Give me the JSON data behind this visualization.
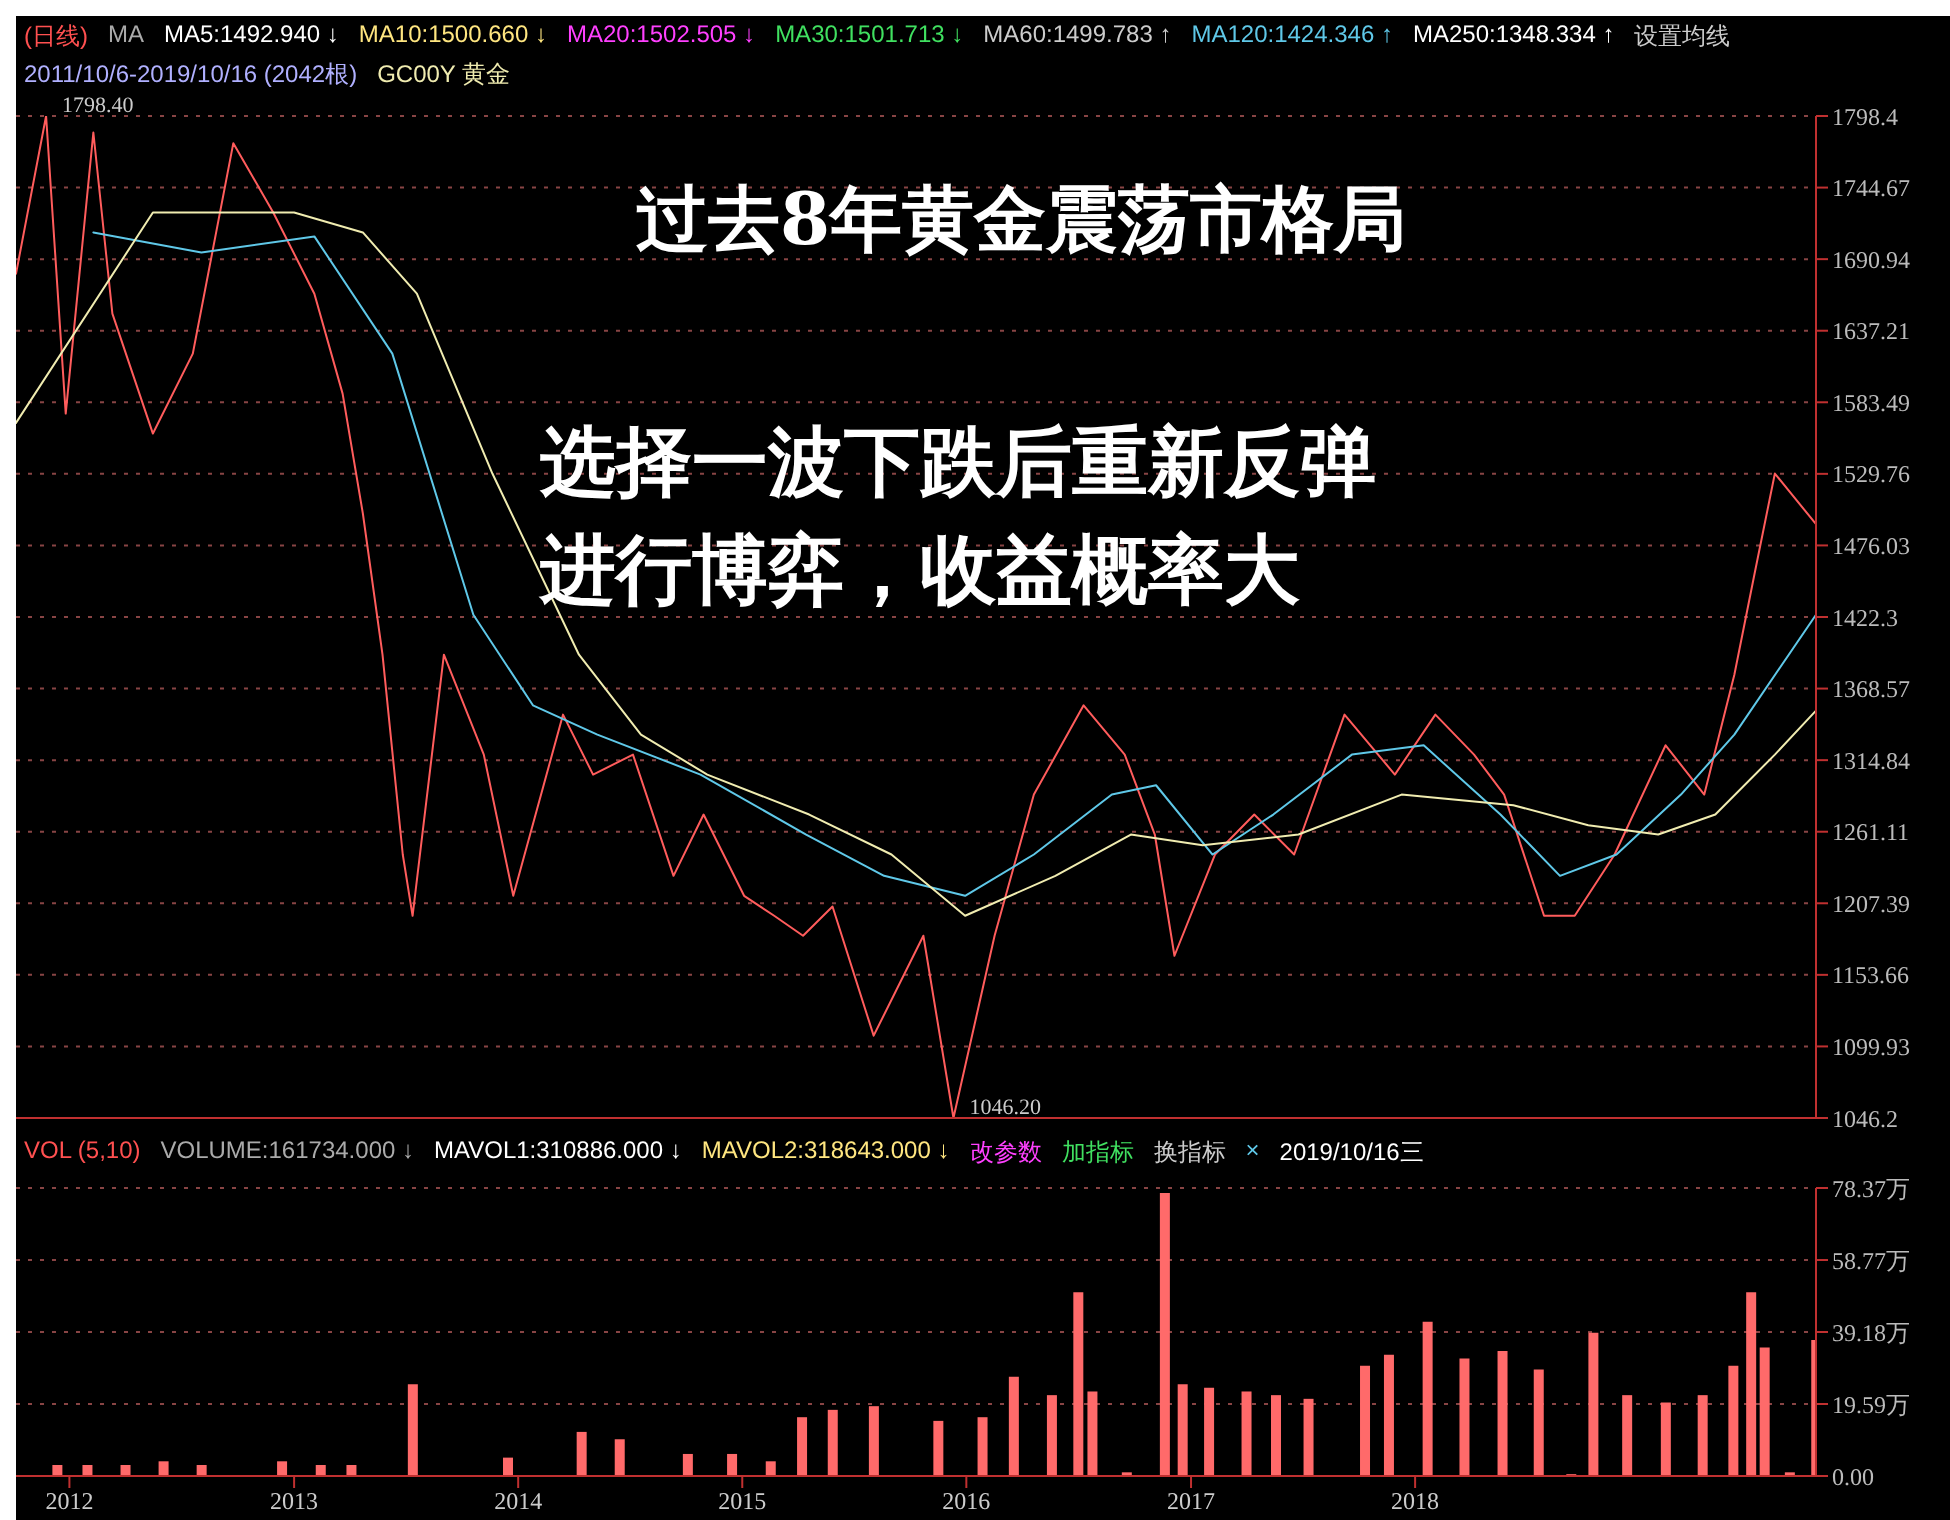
{
  "chart_data": [
    {
      "type": "line",
      "title": "过去8年黄金震荡市格局",
      "subtitle": "选择一波下跌后重新反弹进行博弈，收益概率大",
      "x": [
        "2011-10-06",
        "2011-11-24",
        "2011-12-26",
        "2012-02-09",
        "2012-03-11",
        "2012-05-16",
        "2012-07-20",
        "2012-09-24",
        "2012-11-28",
        "2013-02-03",
        "2013-03-21",
        "2013-04-23",
        "2013-05-25",
        "2013-06-27",
        "2013-07-13",
        "2013-09-02",
        "2013-11-06",
        "2013-12-24",
        "2014-03-15",
        "2014-05-03",
        "2014-07-07",
        "2014-09-11",
        "2014-10-30",
        "2015-01-04",
        "2015-02-22",
        "2015-04-10",
        "2015-05-28",
        "2015-08-03",
        "2015-10-23",
        "2015-12-11",
        "2016-02-16",
        "2016-04-20",
        "2016-07-10",
        "2016-09-15",
        "2016-11-03",
        "2016-12-05",
        "2017-02-09",
        "2017-04-14",
        "2017-06-18",
        "2017-09-08",
        "2017-11-29",
        "2018-02-03",
        "2018-04-07",
        "2018-05-26",
        "2018-07-30",
        "2018-09-18",
        "2018-11-22",
        "2019-02-13",
        "2019-04-17",
        "2019-06-05",
        "2019-07-08",
        "2019-08-10",
        "2019-10-16"
      ],
      "series": [
        {
          "color": "#ff5c5c",
          "values": [
            1680,
            1798.4,
            1575,
            1786,
            1650,
            1560,
            1620,
            1778,
            1726,
            1665,
            1590,
            1500,
            1394,
            1244,
            1198,
            1394,
            1319,
            1213,
            1349,
            1304,
            1319,
            1228,
            1274,
            1213,
            1198,
            1183,
            1205,
            1108,
            1183,
            1046.2,
            1183,
            1289,
            1356,
            1319,
            1259,
            1168,
            1244,
            1274,
            1244,
            1349,
            1304,
            1349,
            1319,
            1289,
            1198,
            1198,
            1244,
            1326,
            1289,
            1379,
            1455,
            1530,
            1492
          ]
        },
        {
          "color": "#5fc8e8",
          "x": [
            "2012-02-09",
            "2012-08-03",
            "2013-02-03",
            "2013-06-10",
            "2013-10-20",
            "2014-01-25",
            "2014-05-10",
            "2014-10-25",
            "2015-04-15",
            "2015-08-20",
            "2015-12-30",
            "2016-04-20",
            "2016-08-25",
            "2016-11-05",
            "2017-02-05",
            "2017-05-15",
            "2017-09-20",
            "2018-01-15",
            "2018-05-20",
            "2018-08-25",
            "2018-11-25",
            "2019-03-10",
            "2019-06-05",
            "2019-10-16"
          ],
          "values": [
            1711,
            1696,
            1708,
            1620,
            1424,
            1356,
            1334,
            1304,
            1259,
            1228,
            1213,
            1244,
            1289,
            1296,
            1244,
            1274,
            1319,
            1326,
            1274,
            1228,
            1244,
            1289,
            1334,
            1424
          ]
        },
        {
          "color": "#f0ecb0",
          "x": [
            "2011-10-06",
            "2012-05-16",
            "2013-01-01",
            "2013-04-23",
            "2013-07-20",
            "2013-11-20",
            "2014-04-10",
            "2014-07-20",
            "2014-11-05",
            "2015-04-20",
            "2015-09-01",
            "2015-12-30",
            "2016-05-25",
            "2016-09-25",
            "2017-01-20",
            "2017-06-25",
            "2017-12-10",
            "2018-06-10",
            "2018-10-10",
            "2019-02-01",
            "2019-05-05",
            "2019-08-10",
            "2019-10-16"
          ],
          "values": [
            1568,
            1726,
            1726,
            1711,
            1665,
            1530,
            1394,
            1334,
            1304,
            1274,
            1244,
            1198,
            1228,
            1259,
            1251,
            1259,
            1289,
            1281,
            1266,
            1259,
            1274,
            1319,
            1352
          ]
        }
      ],
      "xlim": [
        "2011-10-06",
        "2019-10-16"
      ],
      "ylim": [
        1046.2,
        1798.4
      ],
      "yticks": [
        1046.2,
        1099.93,
        1153.66,
        1207.39,
        1261.11,
        1314.84,
        1368.57,
        1422.3,
        1476.03,
        1529.76,
        1583.49,
        1637.21,
        1690.94,
        1744.67,
        1798.4
      ],
      "grid": "y",
      "tick_labels": "y",
      "marker": "none",
      "line_style": "solid",
      "annotations": [
        "(日线)",
        "MA",
        "MA5:1492.940 ↓",
        "MA10:1500.660 ↓",
        "MA20:1502.505 ↓",
        "MA30:1501.713 ↓",
        "MA60:1499.783 ↑",
        "MA120:1424.346 ↑",
        "MA250:1348.334 ↑",
        "设置均线",
        "2011/10/6-2019/10/16 (2042根)",
        "GC00Y 黄金",
        {
          "text": "1798.40",
          "x": "2011-11-24",
          "y": 1798.4
        },
        {
          "text": "1046.20",
          "x": "2015-12-11",
          "y": 1046.2
        }
      ]
    },
    {
      "type": "bar",
      "x": [
        "2011-12-12",
        "2012-01-30",
        "2012-04-01",
        "2012-06-02",
        "2012-08-03",
        "2012-12-12",
        "2013-02-13",
        "2013-04-04",
        "2013-07-13",
        "2013-12-15",
        "2014-04-14",
        "2014-06-15",
        "2014-10-04",
        "2014-12-15",
        "2015-02-16",
        "2015-04-08",
        "2015-05-28",
        "2015-08-03",
        "2015-11-16",
        "2016-01-27",
        "2016-03-18",
        "2016-05-19",
        "2016-07-01",
        "2016-07-24",
        "2016-09-18",
        "2016-11-19",
        "2016-12-18",
        "2017-01-30",
        "2017-04-01",
        "2017-05-19",
        "2017-07-11",
        "2017-10-11",
        "2017-11-19",
        "2018-01-21",
        "2018-03-22",
        "2018-05-23",
        "2018-07-21",
        "2018-09-12",
        "2018-10-18",
        "2018-12-12",
        "2019-02-13",
        "2019-04-14",
        "2019-06-03",
        "2019-07-02",
        "2019-07-24",
        "2019-09-03",
        "2019-10-16"
      ],
      "series": [
        {
          "color": "#ff6a6a",
          "values": [
            3,
            3,
            3,
            4,
            3,
            4,
            3,
            3,
            25,
            5,
            12,
            10,
            6,
            6,
            4,
            16,
            18,
            19,
            15,
            16,
            27,
            22,
            50,
            23,
            1,
            77,
            25,
            24,
            23,
            22,
            21,
            30,
            33,
            42,
            32,
            34,
            29,
            0.5,
            39,
            22,
            20,
            22,
            30,
            50,
            35,
            1,
            37
          ]
        }
      ],
      "xlim": [
        "2011-10-06",
        "2019-10-16"
      ],
      "xticks": [
        "2012",
        "2013",
        "2014",
        "2015",
        "2016",
        "2017",
        "2018"
      ],
      "ylim": [
        0,
        78.37
      ],
      "yticks": [
        {
          "value": 0,
          "label": "0.00"
        },
        {
          "value": 19.59,
          "label": "19.59万"
        },
        {
          "value": 39.18,
          "label": "39.18万"
        },
        {
          "value": 58.77,
          "label": "58.77万"
        },
        {
          "value": 78.37,
          "label": "78.37万"
        }
      ],
      "grid": "y",
      "annotations": [
        "VOL (5,10)",
        "VOLUME:161734.000 ↓",
        "MAVOL1:310886.000 ↓",
        "MAVOL2:318643.000 ↓",
        "改参数",
        "加指标",
        "换指标",
        "×",
        "2019/10/16三"
      ]
    }
  ]
}
